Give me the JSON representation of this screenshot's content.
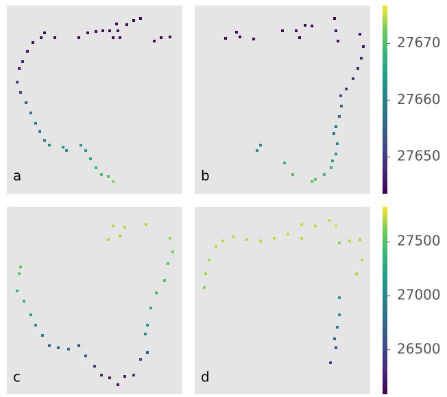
{
  "chart_data": [
    {
      "type": "scatter",
      "label": "a",
      "colormap": "viridis",
      "xlim": [
        0,
        256
      ],
      "ylim": [
        0,
        275
      ],
      "clim": [
        27643.5,
        27676.7
      ],
      "x": [
        195,
        185,
        175,
        160,
        162,
        165,
        155,
        150,
        140,
        130,
        118,
        105,
        70,
        55,
        50,
        38,
        30,
        23,
        18,
        15,
        20,
        28,
        35,
        42,
        48,
        55,
        62,
        82,
        87,
        108,
        115,
        122,
        130,
        138,
        148,
        155,
        215,
        225,
        238
      ],
      "y": [
        256,
        253,
        247,
        248,
        238,
        228,
        228,
        238,
        238,
        237,
        235,
        228,
        228,
        235,
        228,
        221,
        208,
        193,
        183,
        163,
        148,
        133,
        118,
        103,
        91,
        78,
        71,
        68,
        63,
        71,
        63,
        51,
        38,
        28,
        25,
        18,
        223,
        228,
        229
      ],
      "c": [
        27644,
        27644,
        27644,
        27644,
        27644,
        27644,
        27644,
        27644,
        27644,
        27644,
        27644,
        27644,
        27644,
        27645,
        27645,
        27645,
        27646,
        27647,
        27648,
        27650,
        27652,
        27654,
        27657,
        27659,
        27660,
        27661,
        27662,
        27663,
        27663,
        27664,
        27665,
        27666,
        27668,
        27670,
        27671,
        27673,
        27644,
        27644,
        27644
      ]
    },
    {
      "type": "scatter",
      "label": "b",
      "colormap": "viridis",
      "xlim": [
        0,
        256
      ],
      "ylim": [
        0,
        275
      ],
      "clim": [
        27643.5,
        27676.7
      ],
      "colorbar": {
        "ticks": [
          27650,
          27660,
          27670
        ]
      },
      "x": [
        45,
        61,
        66,
        86,
        128,
        148,
        153,
        161,
        171,
        204,
        206,
        209,
        241,
        246,
        243,
        238,
        231,
        221,
        213,
        214,
        211,
        206,
        203,
        208,
        206,
        201,
        199,
        189,
        176,
        171,
        143,
        131,
        96,
        91
      ],
      "y": [
        227,
        236,
        229,
        226,
        238,
        238,
        228,
        246,
        245,
        256,
        238,
        223,
        233,
        215,
        198,
        183,
        168,
        153,
        143,
        128,
        113,
        98,
        88,
        73,
        58,
        48,
        38,
        28,
        21,
        18,
        28,
        45,
        71,
        63
      ],
      "c": [
        27644,
        27644,
        27644,
        27644,
        27644,
        27644,
        27644,
        27644,
        27644,
        27644,
        27644,
        27645,
        27645,
        27646,
        27647,
        27648,
        27649,
        27650,
        27652,
        27654,
        27656,
        27658,
        27659,
        27661,
        27663,
        27665,
        27667,
        27669,
        27671,
        27672,
        27670,
        27668,
        27662,
        27662
      ]
    },
    {
      "type": "scatter",
      "label": "c",
      "colormap": "viridis",
      "xlim": [
        0,
        256
      ],
      "ylim": [
        0,
        275
      ],
      "clim": [
        26080,
        27825
      ],
      "x": [
        155,
        165,
        172,
        203,
        148,
        238,
        242,
        235,
        230,
        218,
        210,
        205,
        202,
        205,
        195,
        185,
        172,
        162,
        150,
        138,
        128,
        115,
        105,
        90,
        75,
        62,
        52,
        42,
        35,
        25,
        15,
        18,
        20
      ],
      "y": [
        247,
        232,
        245,
        249,
        227,
        229,
        209,
        192,
        167,
        149,
        127,
        102,
        89,
        62,
        52,
        29,
        27,
        15,
        25,
        29,
        42,
        57,
        72,
        67,
        69,
        72,
        87,
        102,
        117,
        137,
        152,
        177,
        187
      ],
      "c": [
        27700,
        27700,
        27700,
        27700,
        27700,
        27650,
        27600,
        27550,
        27480,
        27400,
        27250,
        27100,
        27000,
        26700,
        26550,
        26400,
        26250,
        26150,
        26200,
        26300,
        26400,
        26550,
        26650,
        26750,
        26800,
        26850,
        26950,
        27050,
        27150,
        27300,
        27400,
        27500,
        27550
      ]
    },
    {
      "type": "scatter",
      "label": "d",
      "colormap": "viridis",
      "xlim": [
        0,
        256
      ],
      "ylim": [
        0,
        275
      ],
      "clim": [
        26080,
        27825
      ],
      "colorbar": {
        "ticks": [
          26500,
          27000,
          27500
        ]
      },
      "x": [
        14,
        16,
        21,
        31,
        41,
        56,
        76,
        96,
        116,
        136,
        156,
        156,
        176,
        196,
        206,
        211,
        226,
        241,
        244,
        236,
        211,
        211,
        208,
        204,
        206,
        198
      ],
      "y": [
        157,
        177,
        197,
        217,
        225,
        231,
        227,
        225,
        229,
        235,
        229,
        249,
        247,
        255,
        247,
        222,
        225,
        227,
        197,
        177,
        142,
        117,
        99,
        82,
        69,
        47
      ],
      "c": [
        27650,
        27680,
        27700,
        27720,
        27720,
        27720,
        27720,
        27720,
        27720,
        27720,
        27720,
        27740,
        27740,
        27750,
        27750,
        27650,
        27700,
        27700,
        27700,
        27700,
        27150,
        27000,
        26900,
        26700,
        26600,
        26400
      ]
    }
  ]
}
